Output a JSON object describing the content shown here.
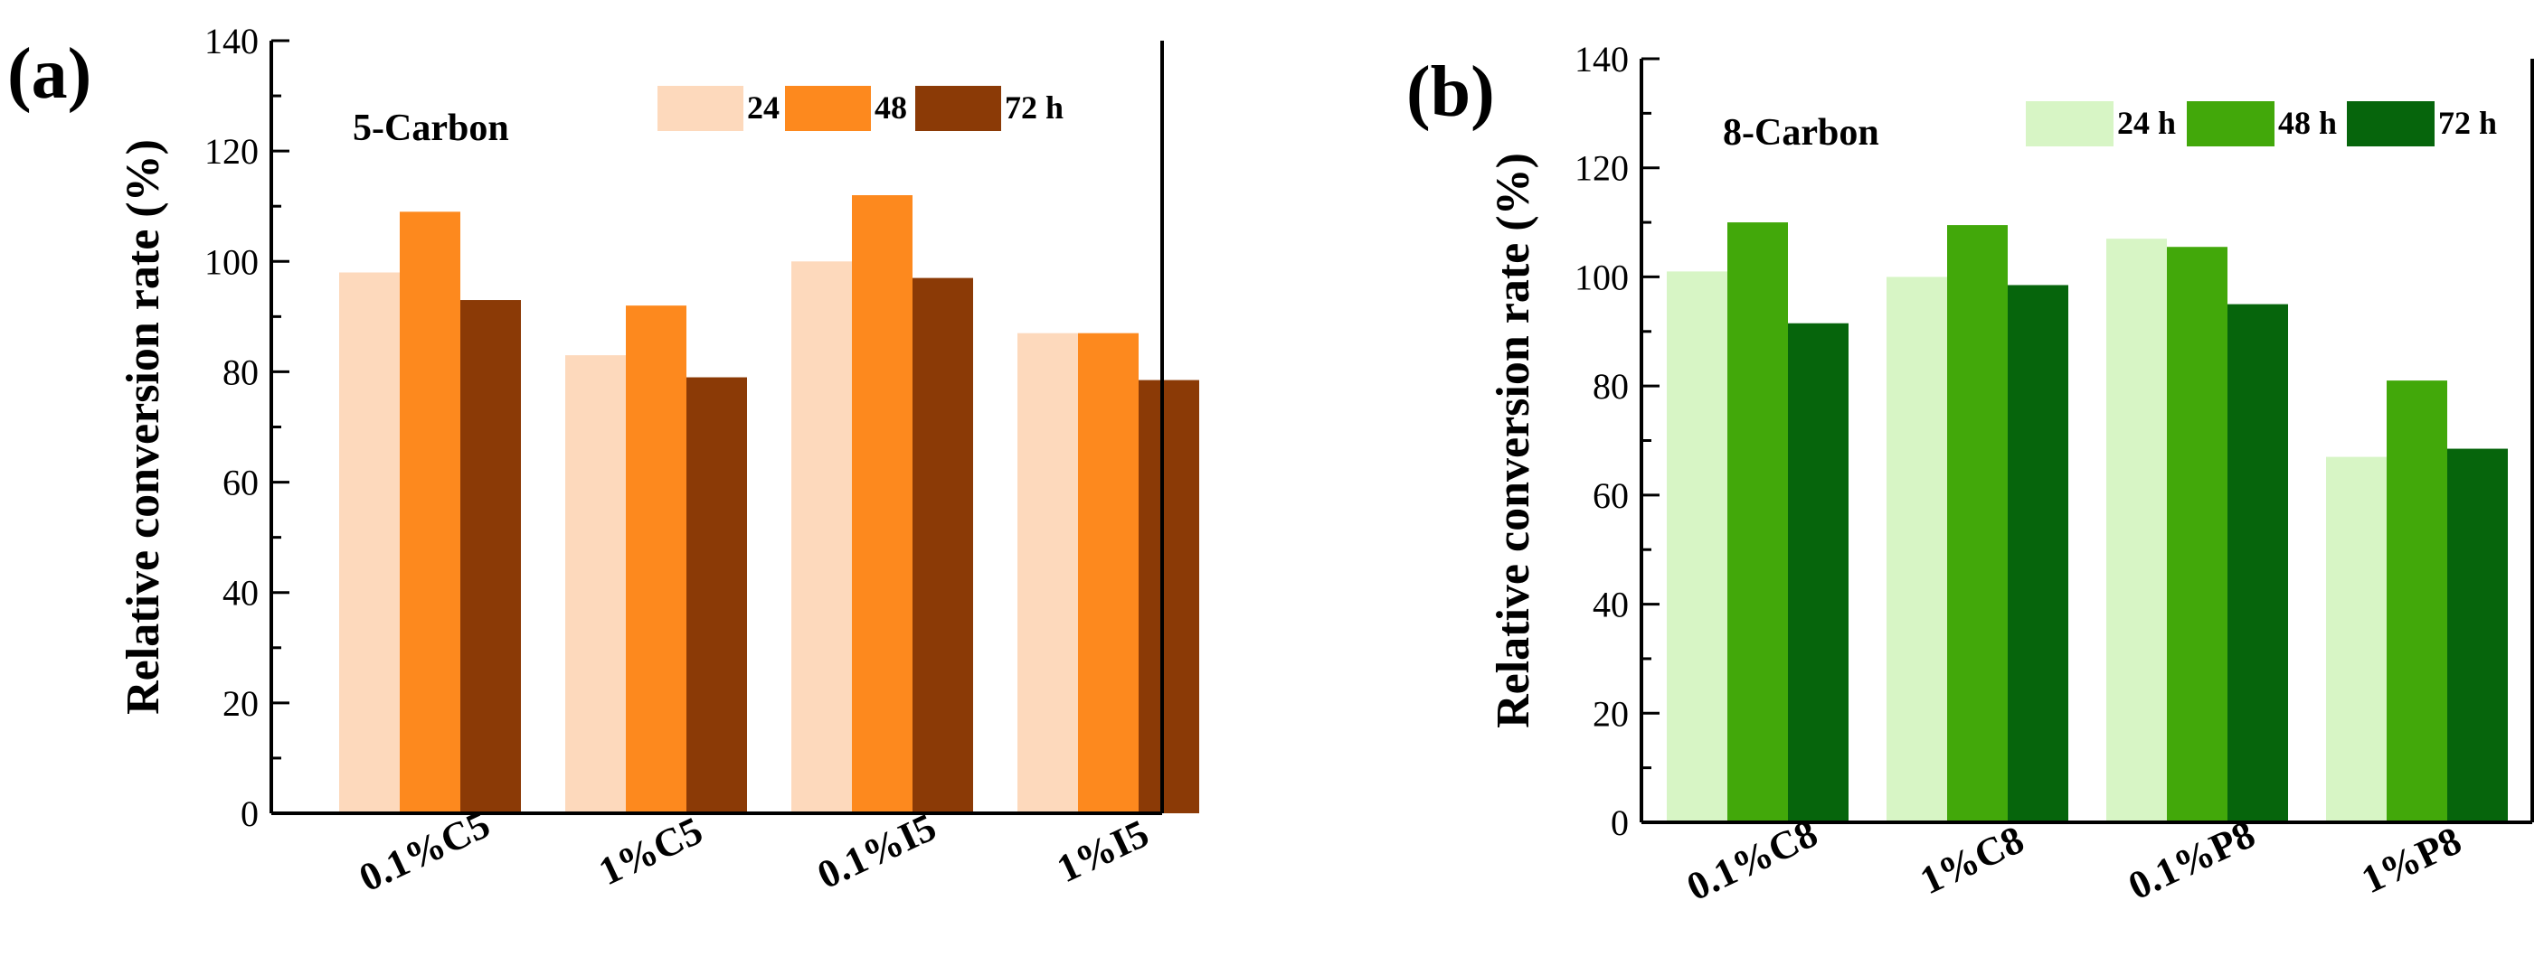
{
  "chart_data": [
    {
      "type": "bar",
      "panel_label": "(a)",
      "title": "5-Carbon",
      "xlabel": "",
      "ylabel": "Relative conversion rate (%)",
      "ylim": [
        0,
        140
      ],
      "yticks": [
        "0",
        "20",
        "40",
        "60",
        "80",
        "100",
        "120",
        "140"
      ],
      "categories": [
        "0.1%C5",
        "1%C5",
        "0.1%I5",
        "1%I5"
      ],
      "series": [
        {
          "name": "24 h",
          "color": "#FDD9BC",
          "values": [
            98,
            83,
            100,
            87
          ]
        },
        {
          "name": "48 h",
          "color": "#FD891E",
          "values": [
            109,
            92,
            112,
            87
          ]
        },
        {
          "name": "72 h",
          "color": "#8B3A06",
          "values": [
            93,
            79,
            97,
            78.5
          ]
        }
      ],
      "legend": "top-right",
      "grid": false
    },
    {
      "type": "bar",
      "panel_label": "(b)",
      "title": "8-Carbon",
      "xlabel": "",
      "ylabel": "Relative conversion rate (%)",
      "ylim": [
        0,
        140
      ],
      "yticks": [
        "0",
        "20",
        "40",
        "60",
        "80",
        "100",
        "120",
        "140"
      ],
      "categories": [
        "0.1%C8",
        "1%C8",
        "0.1%P8",
        "1%P8"
      ],
      "series": [
        {
          "name": "24 h",
          "color": "#D7F5C5",
          "values": [
            101,
            100,
            107,
            67
          ]
        },
        {
          "name": "48 h",
          "color": "#42A80A",
          "values": [
            110,
            109.5,
            105.5,
            81
          ]
        },
        {
          "name": "72 h",
          "color": "#06650C",
          "values": [
            91.5,
            98.5,
            95,
            68.5
          ]
        }
      ],
      "legend": "top-right",
      "grid": false
    }
  ]
}
